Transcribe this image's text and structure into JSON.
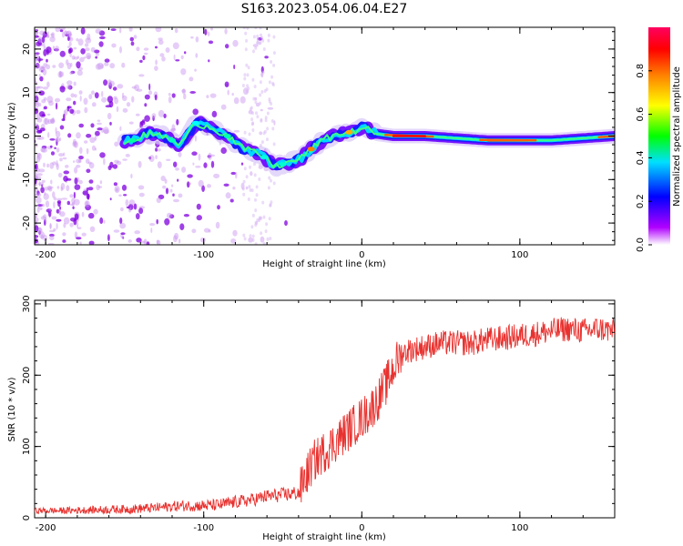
{
  "title": "S163.2023.054.06.04.E27",
  "chart_data": [
    {
      "type": "heatmap",
      "xlabel": "Height of straight line (km)",
      "ylabel": "Frequency (Hz)",
      "xlim": [
        -207,
        160
      ],
      "ylim": [
        -25,
        25
      ],
      "xticks": [
        -200,
        -100,
        0,
        100
      ],
      "yticks": [
        -20,
        -10,
        0,
        10,
        20
      ],
      "colorbar": {
        "label": "Normalized spectral amplitude",
        "range": [
          0,
          1
        ],
        "ticks": [
          0.0,
          0.2,
          0.4,
          0.6,
          0.8
        ]
      },
      "ridge": {
        "x": [
          -145,
          -135,
          -125,
          -115,
          -105,
          -95,
          -85,
          -75,
          -65,
          -55,
          -45,
          -38,
          -32,
          -25,
          -15,
          -5,
          0,
          10,
          20,
          40,
          60,
          80,
          100,
          120,
          140,
          160
        ],
        "y": [
          -1,
          0.5,
          0,
          -2,
          3,
          2,
          0,
          -3,
          -4,
          -7,
          -6,
          -5,
          -3,
          -1,
          0.5,
          1,
          2,
          0.5,
          0,
          0,
          -0.5,
          -1,
          -1,
          -1,
          -0.5,
          0
        ]
      },
      "colors": {
        "noise": "#8a2be2",
        "colormap": [
          "#ffffff",
          "#9d00ff",
          "#0000ff",
          "#00ffff",
          "#00ff00",
          "#ffff00",
          "#ff8000",
          "#ff0000",
          "#ff0080"
        ]
      }
    },
    {
      "type": "line",
      "xlabel": "Height of straight line (km)",
      "ylabel": "SNR (10 * v/v)",
      "xlim": [
        -207,
        160
      ],
      "ylim": [
        0,
        305
      ],
      "xticks": [
        -200,
        -100,
        0,
        100
      ],
      "yticks": [
        0,
        100,
        200,
        300
      ],
      "series": [
        {
          "color": "#e8322f",
          "x": [
            -207,
            -190,
            -170,
            -150,
            -130,
            -120,
            -110,
            -100,
            -90,
            -80,
            -70,
            -60,
            -50,
            -40,
            -35,
            -30,
            -25,
            -20,
            -15,
            -10,
            -5,
            0,
            5,
            10,
            15,
            20,
            25,
            30,
            40,
            50,
            60,
            70,
            80,
            90,
            100,
            110,
            120,
            130,
            140,
            150,
            160
          ],
          "y": [
            10,
            10,
            11,
            12,
            14,
            16,
            17,
            17,
            18,
            22,
            25,
            30,
            32,
            35,
            60,
            80,
            90,
            100,
            110,
            120,
            130,
            140,
            150,
            165,
            185,
            210,
            230,
            235,
            240,
            245,
            245,
            245,
            250,
            252,
            255,
            258,
            262,
            265,
            262,
            265,
            262
          ]
        }
      ]
    }
  ]
}
